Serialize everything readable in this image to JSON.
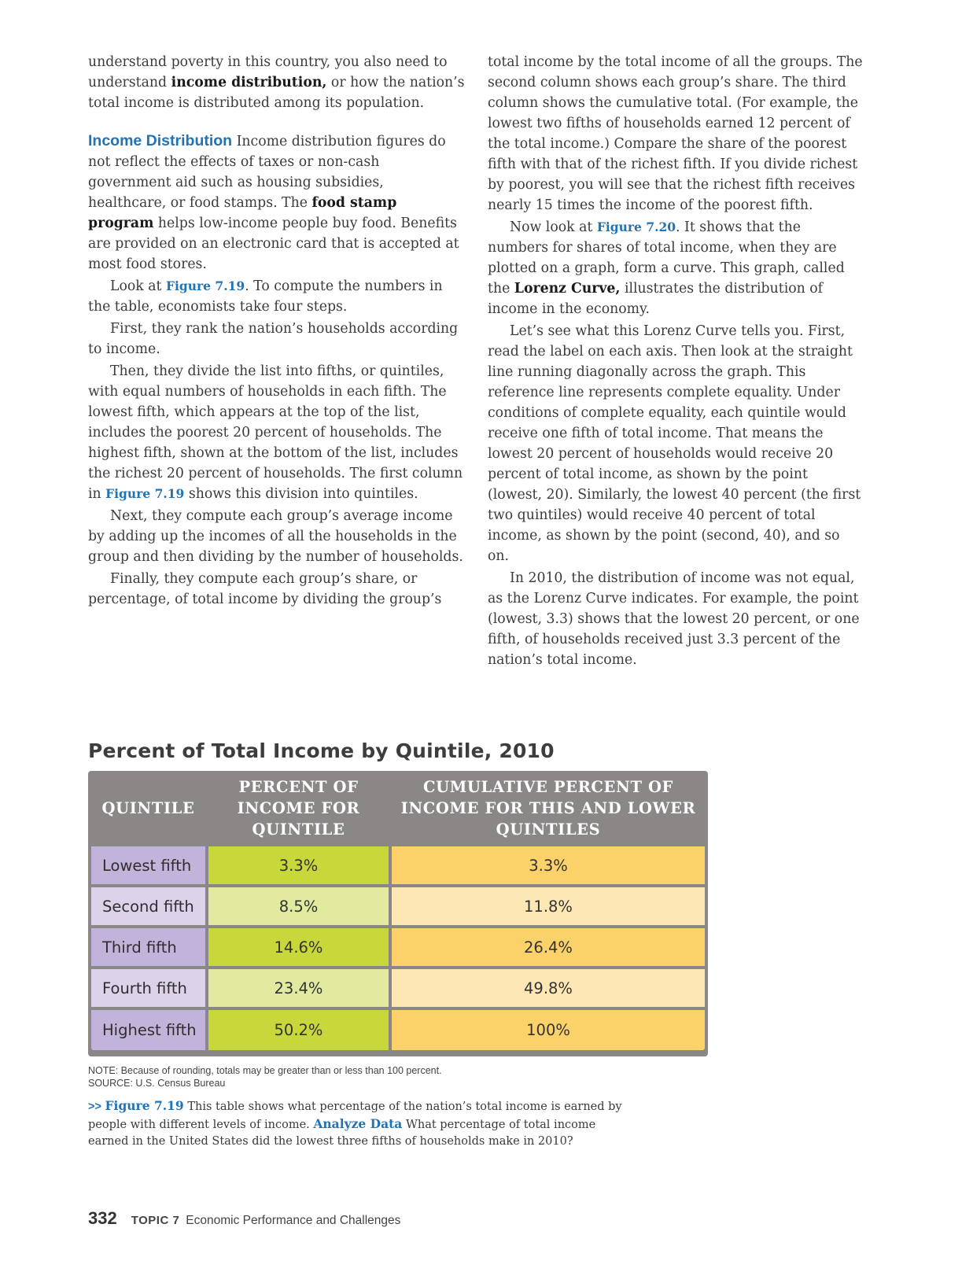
{
  "left_column": {
    "p1_a": "understand poverty in this country, you also need to understand ",
    "p1_term": "income distribution,",
    "p1_b": " or how the nation’s total income is distributed among its population.",
    "heading": "Income Distribution",
    "p2_a": " Income distribution figures do not reflect the effects of taxes or non-cash government aid such as housing subsidies, healthcare, or food stamps. The ",
    "p2_term": "food stamp program",
    "p2_b": " helps low-income people buy food. Benefits are provided on an electronic card that is accepted at most food stores.",
    "p3_a": "Look at ",
    "p3_fig": "Figure 7.19",
    "p3_b": ". To compute the numbers in the table, economists take four steps.",
    "p4": "First, they rank the nation’s households according to income.",
    "p5_a": "Then, they divide the list into fifths, or quintiles, with equal numbers of households in each fifth. The lowest fifth, which appears at the top of the list, includes the poorest 20 percent of households. The highest fifth, shown at the bottom of the list, includes the richest 20 percent of households. The first column in ",
    "p5_fig": "Figure 7.19",
    "p5_b": " shows this division into quintiles.",
    "p6": "Next, they compute each group’s average income by adding up the incomes of all the households in the group and then dividing by the number of households.",
    "p7": "Finally, they compute each group’s share, or percentage, of total income by dividing the group’s"
  },
  "right_column": {
    "p1": "total income by the total income of all the groups. The second column shows each group’s share. The third column shows the cumulative total. (For example, the lowest two fifths of households earned 12 percent of the total income.) Compare the share of the poorest fifth with that of the richest fifth. If you divide richest by poorest, you will see that the richest fifth receives nearly 15 times the income of the poorest fifth.",
    "p2_a": "Now look at ",
    "p2_fig": "Figure 7.20",
    "p2_b": ". It shows that the numbers for shares of total income, when they are plotted on a graph, form a curve. This graph, called the ",
    "p2_term": "Lorenz Curve,",
    "p2_c": " illustrates the distribution of income in the economy.",
    "p3": "Let’s see what this Lorenz Curve tells you. First, read the label on each axis. Then look at the straight line running diagonally across the graph. This reference line represents complete equality. Under conditions of complete equality, each quintile would receive one fifth of total income. That means the lowest 20 percent of households would receive 20 percent of total income, as shown by the point (lowest, 20). Similarly, the lowest 40 percent (the first two quintiles) would receive 40 percent of total income, as shown by the point (second, 40), and so on.",
    "p4": "In 2010, the distribution of income was not equal, as the Lorenz Curve indicates. For example, the point (lowest, 3.3) shows that the lowest 20 percent, or one fifth, of households received just 3.3 percent of the nation’s total income."
  },
  "table": {
    "title": "Percent of Total Income by Quintile, 2010",
    "headers": [
      "QUINTILE",
      "PERCENT OF INCOME FOR QUINTILE",
      "CUMULATIVE PERCENT OF INCOME FOR THIS AND LOWER QUINTILES"
    ],
    "rows": [
      {
        "quintile": "Lowest fifth",
        "percent": "3.3%",
        "cumulative": "3.3%"
      },
      {
        "quintile": "Second fifth",
        "percent": "8.5%",
        "cumulative": "11.8%"
      },
      {
        "quintile": "Third fifth",
        "percent": "14.6%",
        "cumulative": "26.4%"
      },
      {
        "quintile": "Fourth fifth",
        "percent": "23.4%",
        "cumulative": "49.8%"
      },
      {
        "quintile": "Highest fifth",
        "percent": "50.2%",
        "cumulative": "100%"
      }
    ],
    "colors": {
      "header": "#8c8787",
      "label_dark": "#c1b3d9",
      "label_light": "#dcd3ea",
      "green_dark": "#c8d73a",
      "green_light": "#e2eaa0",
      "orange_dark": "#fbd26a",
      "orange_light": "#fde8b5"
    }
  },
  "note": "NOTE: Because of rounding, totals may be greater than or less than 100 percent.",
  "source": "SOURCE: U.S. Census Bureau",
  "caption": {
    "arrow": ">>",
    "fig": "Figure 7.19",
    "text_a": " This table shows what percentage of the nation’s total income is earned by people with different levels of income. ",
    "prompt": "Analyze Data",
    "text_b": "  What percentage of total income earned in the United States did the lowest three fifths of households make in 2010?"
  },
  "footer": {
    "page_number": "332",
    "topic_label": "TOPIC 7",
    "topic_title": "Economic Performance and Challenges"
  }
}
